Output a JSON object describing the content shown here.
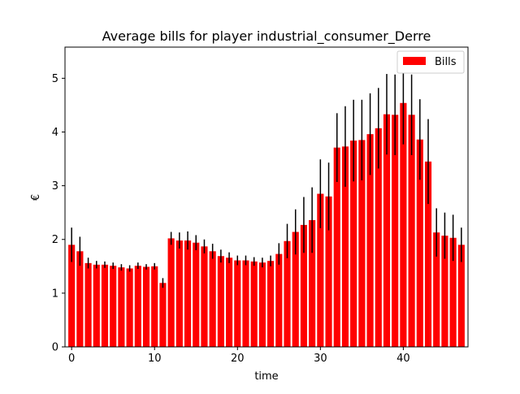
{
  "chart_data": {
    "type": "bar",
    "title": "Average bills for player industrial_consumer_Derre",
    "xlabel": "time",
    "ylabel": "€",
    "x": [
      0,
      1,
      2,
      3,
      4,
      5,
      6,
      7,
      8,
      9,
      10,
      11,
      12,
      13,
      14,
      15,
      16,
      17,
      18,
      19,
      20,
      21,
      22,
      23,
      24,
      25,
      26,
      27,
      28,
      29,
      30,
      31,
      32,
      33,
      34,
      35,
      36,
      37,
      38,
      39,
      40,
      41,
      42,
      43,
      44,
      45,
      46,
      47
    ],
    "xlim": [
      -0.8,
      47.8
    ],
    "ylim": [
      0,
      5.58
    ],
    "xticks": [
      0,
      10,
      20,
      30,
      40
    ],
    "yticks": [
      0,
      1,
      2,
      3,
      4,
      5
    ],
    "grid": false,
    "legend_position": "top-right",
    "series": [
      {
        "name": "Bills",
        "color": "#ff0000",
        "values": [
          1.9,
          1.78,
          1.56,
          1.53,
          1.53,
          1.51,
          1.48,
          1.46,
          1.51,
          1.49,
          1.5,
          1.19,
          2.02,
          1.98,
          1.98,
          1.94,
          1.87,
          1.78,
          1.69,
          1.66,
          1.61,
          1.61,
          1.59,
          1.57,
          1.6,
          1.73,
          1.97,
          2.14,
          2.27,
          2.36,
          2.85,
          2.8,
          3.71,
          3.73,
          3.84,
          3.85,
          3.96,
          4.07,
          4.33,
          4.32,
          4.54,
          4.32,
          3.86,
          3.45,
          2.13,
          2.07,
          2.03,
          1.9
        ],
        "errors": [
          0.32,
          0.27,
          0.1,
          0.07,
          0.06,
          0.06,
          0.06,
          0.06,
          0.06,
          0.05,
          0.06,
          0.09,
          0.12,
          0.15,
          0.17,
          0.14,
          0.13,
          0.14,
          0.12,
          0.1,
          0.09,
          0.09,
          0.08,
          0.09,
          0.1,
          0.2,
          0.32,
          0.42,
          0.52,
          0.61,
          0.64,
          0.63,
          0.64,
          0.75,
          0.76,
          0.75,
          0.76,
          0.75,
          0.75,
          0.75,
          0.77,
          0.75,
          0.75,
          0.79,
          0.45,
          0.43,
          0.43,
          0.32
        ]
      }
    ],
    "error_bar_color": "#000000"
  }
}
